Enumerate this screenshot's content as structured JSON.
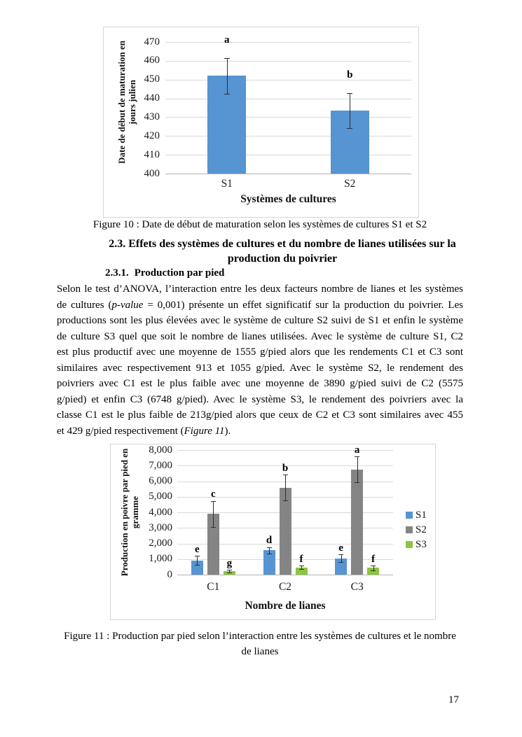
{
  "page": {
    "number": "17",
    "background": "#ffffff"
  },
  "figure10": {
    "caption": "Figure 10 : Date de début de maturation selon les systèmes de cultures S1 et S2"
  },
  "section": {
    "heading_line1": "2.3. Effets des systèmes de cultures et du nombre de lianes utilisées sur la",
    "heading_line2": "production du poivrier",
    "subheading_number": "2.3.1.",
    "subheading_title": "Production par pied"
  },
  "paragraph": {
    "lines": [
      [
        {
          "t": "Selon le test d’ANOVA, l’interaction entre les deux facteurs nombre de lianes et les systèmes"
        }
      ],
      [
        {
          "t": "de cultures ("
        },
        {
          "t": "p-value",
          "i": true
        },
        {
          "t": " = 0,001) présente un effet significatif sur la production du poivrier. Les"
        }
      ],
      [
        {
          "t": "productions sont les plus élevées avec le système de culture S2 suivi de S1 et enfin le système"
        }
      ],
      [
        {
          "t": "de culture S3 quel que soit le nombre de lianes utilisées. Avec le système de culture S1, C2"
        }
      ],
      [
        {
          "t": "est plus productif avec une moyenne de 1555 g/pied alors que les rendements C1 et C3 sont"
        }
      ],
      [
        {
          "t": "similaires avec respectivement 913 et 1055 g/pied. Avec le système S2, le rendement des"
        }
      ],
      [
        {
          "t": "poivriers avec C1 est le plus faible avec une moyenne de 3890 g/pied suivi de C2 (5575"
        }
      ],
      [
        {
          "t": "g/pied) et enfin C3 (6748 g/pied). Avec le système S3, le rendement des poivriers avec la"
        }
      ],
      [
        {
          "t": "classe C1 est le plus faible de 213g/pied alors que ceux de C2 et C3 sont similaires avec 455"
        }
      ],
      [
        {
          "t": "et 429 g/pied respectivement ("
        },
        {
          "t": "Figure 11",
          "i": true
        },
        {
          "t": ")."
        }
      ]
    ]
  },
  "figure11": {
    "caption_line1": "Figure 11 : Production par pied selon l’interaction entre les systèmes de cultures et le nombre",
    "caption_line2": "de lianes"
  },
  "chart_data": [
    {
      "type": "bar",
      "title": "",
      "categories": [
        "S1",
        "S2"
      ],
      "values": [
        452,
        433.5
      ],
      "errors": [
        9.4,
        9.4
      ],
      "letters": [
        "a",
        "b"
      ],
      "xlabel": "Systèmes de cultures",
      "ylabel": "Date de début de maturation en jours julien",
      "ylabel_lines": [
        "Date de début de maturation en",
        "jours julien"
      ],
      "ylim": [
        400,
        470
      ],
      "ytick_step": 10,
      "yticks": [
        "400",
        "410",
        "420",
        "430",
        "440",
        "450",
        "460",
        "470"
      ],
      "bar_color": "#5694d2",
      "grid": true,
      "legend_position": "none"
    },
    {
      "type": "bar",
      "title": "",
      "categories": [
        "C1",
        "C2",
        "C3"
      ],
      "series": [
        {
          "name": "S1",
          "color": "#5694d2",
          "values": [
            913,
            1555,
            1055
          ],
          "errors": [
            290,
            220,
            230
          ],
          "letters": [
            "e",
            "d",
            "e"
          ]
        },
        {
          "name": "S2",
          "color": "#848484",
          "values": [
            3890,
            5575,
            6748
          ],
          "errors": [
            830,
            830,
            830
          ],
          "letters": [
            "c",
            "b",
            "a"
          ]
        },
        {
          "name": "S3",
          "color": "#8cc540",
          "values": [
            213,
            455,
            429
          ],
          "errors": [
            80,
            110,
            150
          ],
          "letters": [
            "g",
            "f",
            "f"
          ]
        }
      ],
      "xlabel": "Nombre de lianes",
      "ylabel": "Production en poivre par pied en gramme",
      "ylabel_lines": [
        "Production en poivre par pied en",
        "gramme"
      ],
      "ylim": [
        0,
        8000
      ],
      "ytick_step": 1000,
      "yticks": [
        "0",
        "1,000",
        "2,000",
        "3,000",
        "4,000",
        "5,000",
        "6,000",
        "7,000",
        "8,000"
      ],
      "legend": [
        "S1",
        "S2",
        "S3"
      ],
      "legend_position": "right",
      "grid": true
    }
  ]
}
